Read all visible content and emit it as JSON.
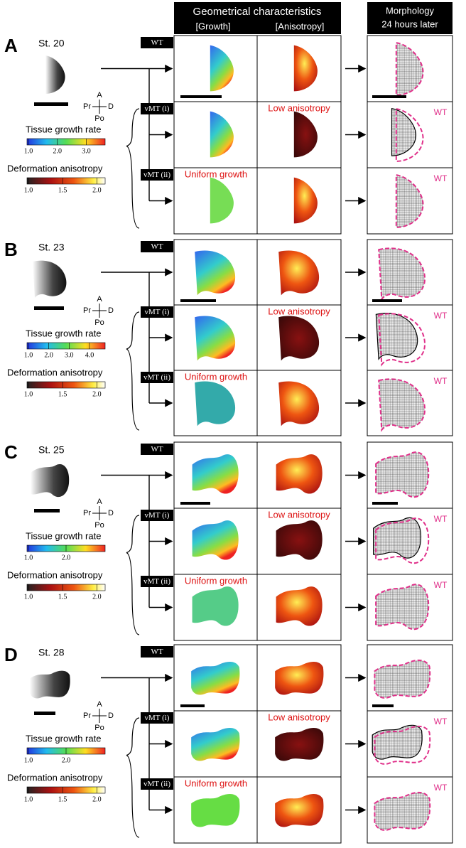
{
  "header": {
    "title": "Geometrical characteristics",
    "growth": "[Growth]",
    "anisotropy": "[Anisotropy]",
    "morphology": [
      "Morphology",
      "24 hours later"
    ]
  },
  "panels": [
    {
      "letter": "A",
      "stage": "St. 20",
      "axes": [
        "A",
        "Pr",
        "D",
        "Po"
      ],
      "rows": [
        "WT",
        "vMT (i)",
        "vMT (ii)"
      ],
      "low_anisotropy": "Low anisotropy",
      "uniform_growth": "Uniform growth",
      "wt_labels": [
        "WT",
        "WT"
      ],
      "growth_bar": {
        "title": "Tissue growth rate",
        "lim": [
          1,
          3.6
        ],
        "ticks": [
          {
            "value": 1,
            "label": "1.0"
          },
          {
            "value": 2,
            "label": "2.0"
          },
          {
            "value": 3,
            "label": "3.0"
          }
        ]
      },
      "anisotropy_bar": {
        "title": "Deformation anisotropy",
        "lim": [
          1,
          2.1
        ],
        "ticks": [
          {
            "value": 1,
            "label": "1.0"
          },
          1.5,
          {
            "value": 2,
            "label": "2.0"
          }
        ]
      }
    },
    {
      "letter": "B",
      "stage": "St. 23",
      "axes": [
        "A",
        "Pr",
        "D",
        "Po"
      ],
      "rows": [
        "WT",
        "vMT (i)",
        "vMT (ii)"
      ],
      "low_anisotropy": "Low anisotropy",
      "uniform_growth": "Uniform growth",
      "wt_labels": [
        "WT",
        "WT"
      ],
      "growth_bar": {
        "title": "Tissue growth rate",
        "lim": [
          1,
          4.7
        ],
        "ticks": [
          {
            "value": 1,
            "label": "1.0"
          },
          {
            "value": 2,
            "label": "2.0"
          },
          {
            "value": 3,
            "label": "3.0"
          },
          {
            "value": 4,
            "label": "4.0"
          }
        ]
      },
      "anisotropy_bar": {
        "title": "Deformation anisotropy",
        "lim": [
          1,
          2.1
        ],
        "ticks": [
          {
            "value": 1,
            "label": "1.0"
          },
          1.5,
          {
            "value": 2,
            "label": "2.0"
          }
        ]
      }
    },
    {
      "letter": "C",
      "stage": "St. 25",
      "axes": [
        "A",
        "Pr",
        "D",
        "Po"
      ],
      "rows": [
        "WT",
        "vMT (i)",
        "vMT (ii)"
      ],
      "low_anisotropy": "Low anisotropy",
      "uniform_growth": "Uniform growth",
      "wt_labels": [
        "WT",
        "WT"
      ],
      "growth_bar": {
        "title": "Tissue growth rate",
        "lim": [
          1,
          3
        ],
        "ticks": [
          {
            "value": 1,
            "label": "1.0"
          },
          {
            "value": 2,
            "label": "2.0"
          }
        ]
      },
      "anisotropy_bar": {
        "title": "Deformation anisotropy",
        "lim": [
          1,
          2.1
        ],
        "ticks": [
          {
            "value": 1,
            "label": "1.0"
          },
          1.5,
          {
            "value": 2,
            "label": "2.0"
          }
        ]
      }
    },
    {
      "letter": "D",
      "stage": "St. 28",
      "axes": [
        "A",
        "Pr",
        "D",
        "Po"
      ],
      "rows": [
        "WT",
        "vMT (i)",
        "vMT (ii)"
      ],
      "low_anisotropy": "Low anisotropy",
      "uniform_growth": "Uniform growth",
      "wt_labels": [
        "WT",
        "WT"
      ],
      "growth_bar": {
        "title": "Tissue growth rate",
        "lim": [
          1,
          3
        ],
        "ticks": [
          {
            "value": 1,
            "label": "1.0"
          },
          {
            "value": 2,
            "label": "2.0"
          }
        ]
      },
      "anisotropy_bar": {
        "title": "Deformation anisotropy",
        "lim": [
          1,
          2.1
        ],
        "ticks": [
          {
            "value": 1,
            "label": "1.0"
          },
          1.5,
          {
            "value": 2,
            "label": "2.0"
          }
        ]
      }
    }
  ]
}
